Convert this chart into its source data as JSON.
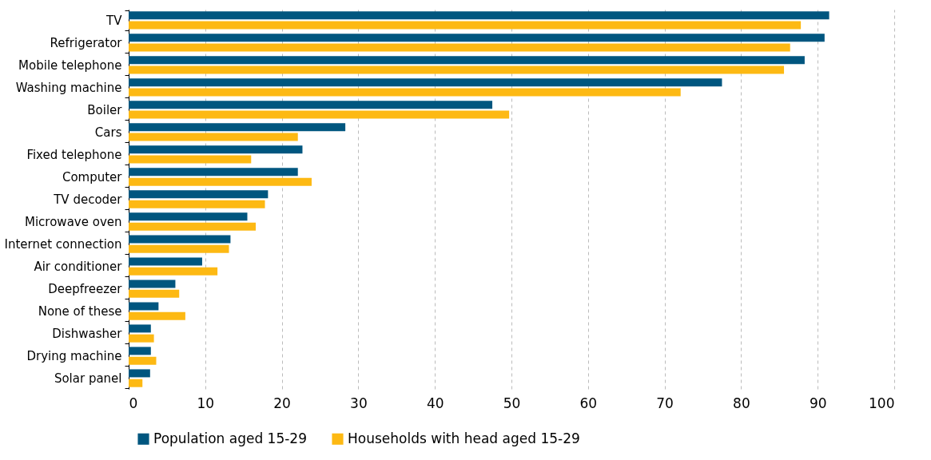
{
  "chart_data": {
    "type": "bar",
    "orientation": "horizontal",
    "categories": [
      "TV",
      "Refrigerator",
      "Mobile telephone",
      "Washing machine",
      "Boiler",
      "Cars",
      "Fixed telephone",
      "Computer",
      "TV decoder",
      "Microwave oven",
      "Internet connection",
      "Air conditioner",
      "Deepfreezer",
      "None of these",
      "Dishwasher",
      "Drying machine",
      "Solar panel"
    ],
    "series": [
      {
        "name": "Population aged 15-29",
        "color": "#00567f",
        "values": [
          91.5,
          90.9,
          88.3,
          77.5,
          47.5,
          28.3,
          22.7,
          22.1,
          18.2,
          15.5,
          13.3,
          9.6,
          6.1,
          3.9,
          2.9,
          2.9,
          2.8
        ]
      },
      {
        "name": "Households with head aged 15-29",
        "color": "#fdb913",
        "values": [
          87.8,
          86.4,
          85.6,
          72.1,
          49.7,
          22.1,
          16.0,
          23.9,
          17.8,
          16.6,
          13.1,
          11.6,
          6.6,
          7.4,
          3.3,
          3.6,
          1.8
        ]
      }
    ],
    "xlim": [
      0,
      100
    ],
    "xticks": [
      0,
      10,
      20,
      30,
      40,
      50,
      60,
      70,
      80,
      90,
      100
    ],
    "grid": "x",
    "legend": "bottom"
  }
}
